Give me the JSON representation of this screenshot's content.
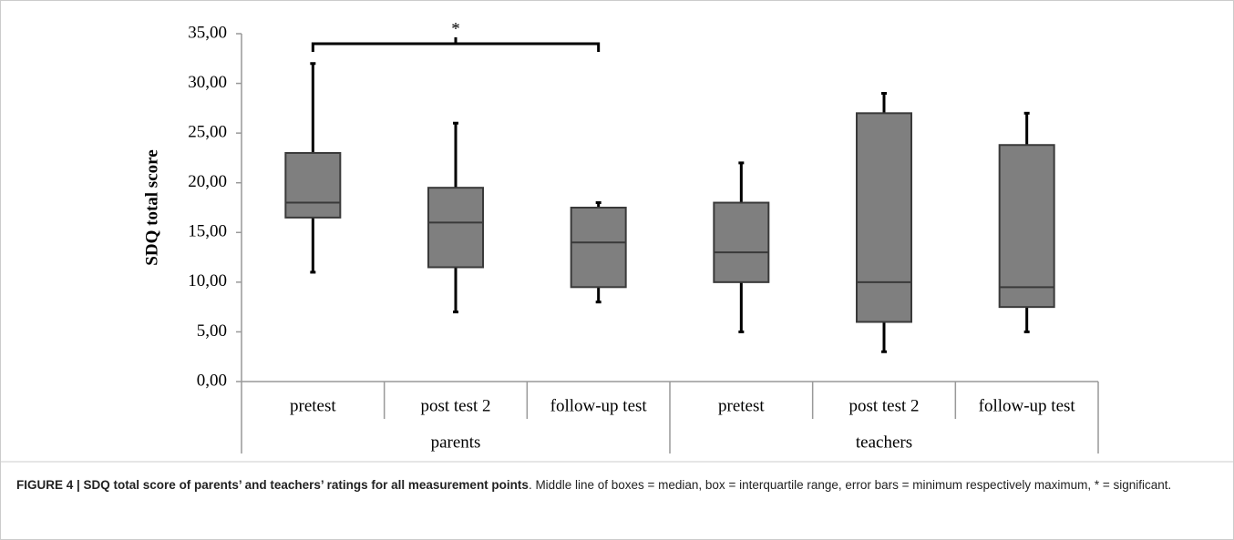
{
  "chart_data": {
    "type": "box",
    "ylabel": "SDQ total score",
    "groups": [
      {
        "name": "parents",
        "categories": [
          "pretest",
          "post test 2",
          "follow-up test"
        ]
      },
      {
        "name": "teachers",
        "categories": [
          "pretest",
          "post test 2",
          "follow-up test"
        ]
      }
    ],
    "values": [
      {
        "min": 11,
        "q1": 16.5,
        "median": 18,
        "q3": 23,
        "max": 32
      },
      {
        "min": 7,
        "q1": 11.5,
        "median": 16,
        "q3": 19.5,
        "max": 26
      },
      {
        "min": 8,
        "q1": 9.5,
        "median": 14,
        "q3": 17.5,
        "max": 18
      },
      {
        "min": 5,
        "q1": 10,
        "median": 13,
        "q3": 18,
        "max": 22
      },
      {
        "min": 3,
        "q1": 6,
        "median": 10,
        "q3": 27,
        "max": 29
      },
      {
        "min": 5,
        "q1": 7.5,
        "median": 9.5,
        "q3": 23.8,
        "max": 27
      }
    ],
    "color": "#7f7f7f",
    "ylim": [
      0,
      35
    ],
    "yticks": [
      {
        "value": 0,
        "label": "0,00"
      },
      {
        "value": 5,
        "label": "5,00"
      },
      {
        "value": 10,
        "label": "10,00"
      },
      {
        "value": 15,
        "label": "15,00"
      },
      {
        "value": 20,
        "label": "20,00"
      },
      {
        "value": 25,
        "label": "25,00"
      },
      {
        "value": 30,
        "label": "30,00"
      },
      {
        "value": 35,
        "label": "35,00"
      }
    ],
    "annotations": [
      {
        "text": "*",
        "from": 0,
        "to": 2
      }
    ]
  },
  "caption": {
    "bold": "FIGURE 4 | SDQ total score of parents’ and teachers’ ratings for all measurement points",
    "text": ". Middle line of boxes = median, box = interquartile range, error bars = minimum respectively maximum, * = significant."
  }
}
